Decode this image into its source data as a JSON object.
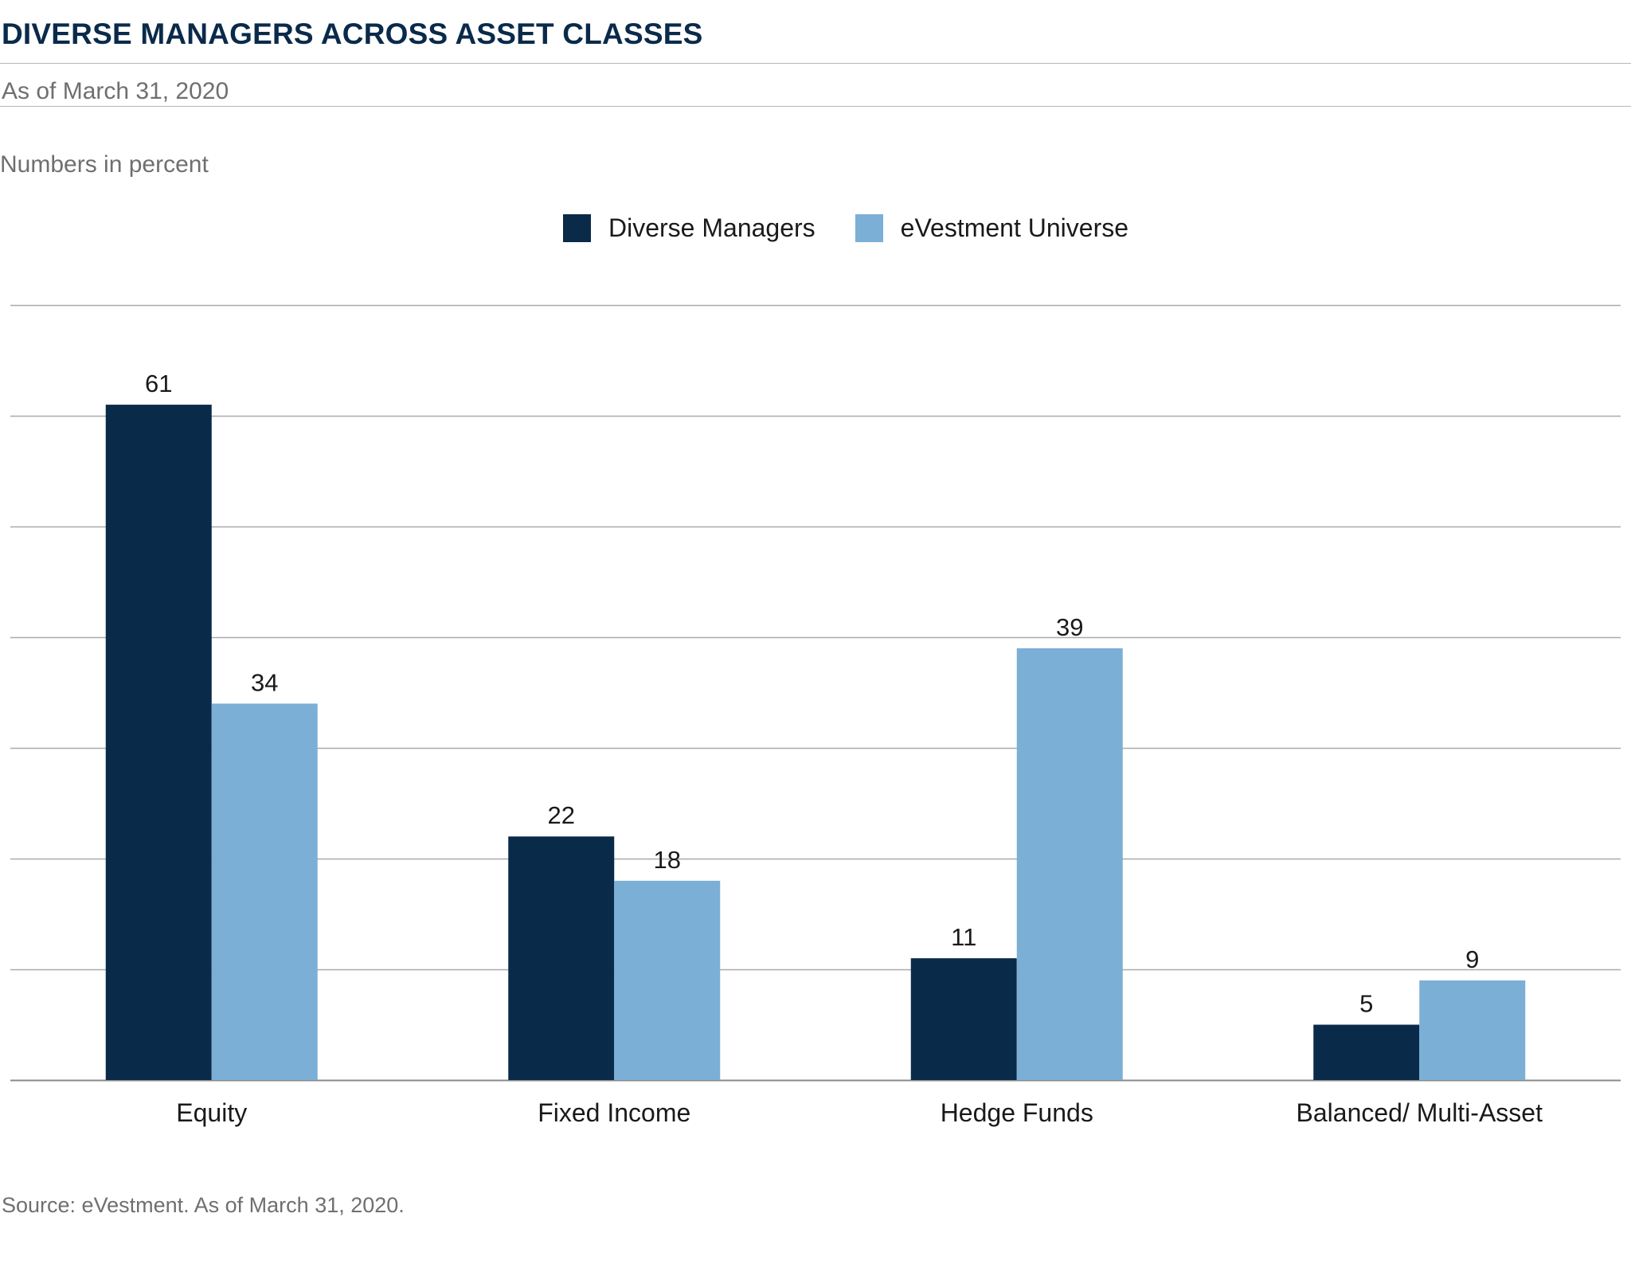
{
  "title": "DIVERSE MANAGERS ACROSS ASSET CLASSES",
  "subtitle": "As of March 31, 2020",
  "units_note": "Numbers in percent",
  "source": "Source:  eVestment. As of March 31, 2020.",
  "chart_data": {
    "type": "bar",
    "categories": [
      "Equity",
      "Fixed Income",
      "Hedge Funds",
      "Balanced/ Multi-Asset"
    ],
    "series": [
      {
        "name": "Diverse Managers",
        "values": [
          61,
          22,
          11,
          5
        ],
        "color": "#0a2a4a"
      },
      {
        "name": "eVestment Universe",
        "values": [
          34,
          18,
          39,
          9
        ],
        "color": "#7bafd6"
      }
    ],
    "ylim": [
      0,
      70
    ],
    "ytick_step": 10,
    "grid": true,
    "y_tick_labels_shown": false,
    "legend_position": "top-center",
    "data_labels": true
  }
}
